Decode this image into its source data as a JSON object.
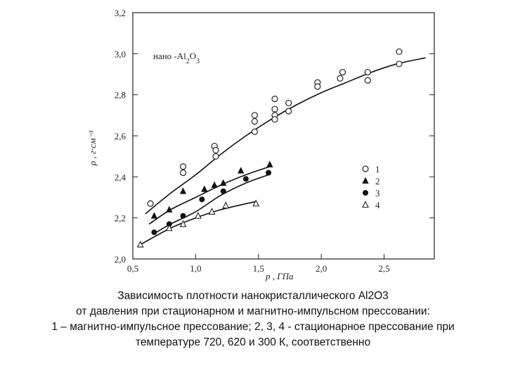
{
  "chart_data": {
    "type": "scatter",
    "annotation": "нано -Al2O3",
    "xlabel": "p , ГПа",
    "ylabel": "ρ , г·см⁻³",
    "xlim": [
      0.5,
      2.9
    ],
    "ylim": [
      2.0,
      3.2
    ],
    "x_ticks": [
      "0,5",
      "1,0",
      "1,5",
      "2,0",
      "2,5"
    ],
    "x_tick_values": [
      0.5,
      1.0,
      1.5,
      2.0,
      2.5
    ],
    "y_ticks": [
      "2,0",
      "2,2",
      "2,4",
      "2,6",
      "2,8",
      "3,0",
      "3,2"
    ],
    "y_tick_values": [
      2.0,
      2.2,
      2.4,
      2.6,
      2.8,
      3.0,
      3.2
    ],
    "legend_position": "right",
    "series": [
      {
        "name": "1",
        "marker": "open-circle",
        "points": [
          [
            0.64,
            2.27
          ],
          [
            0.9,
            2.45
          ],
          [
            0.9,
            2.42
          ],
          [
            1.15,
            2.55
          ],
          [
            1.16,
            2.53
          ],
          [
            1.16,
            2.5
          ],
          [
            1.47,
            2.7
          ],
          [
            1.47,
            2.67
          ],
          [
            1.47,
            2.62
          ],
          [
            1.63,
            2.78
          ],
          [
            1.63,
            2.73
          ],
          [
            1.63,
            2.7
          ],
          [
            1.63,
            2.68
          ],
          [
            1.74,
            2.76
          ],
          [
            1.74,
            2.72
          ],
          [
            1.97,
            2.86
          ],
          [
            1.97,
            2.84
          ],
          [
            2.15,
            2.88
          ],
          [
            2.17,
            2.91
          ],
          [
            2.37,
            2.91
          ],
          [
            2.37,
            2.87
          ],
          [
            2.62,
            3.01
          ],
          [
            2.62,
            2.95
          ]
        ],
        "fit": [
          [
            0.6,
            2.22
          ],
          [
            0.8,
            2.32
          ],
          [
            1.0,
            2.41
          ],
          [
            1.2,
            2.51
          ],
          [
            1.4,
            2.6
          ],
          [
            1.6,
            2.68
          ],
          [
            1.8,
            2.75
          ],
          [
            2.0,
            2.81
          ],
          [
            2.2,
            2.86
          ],
          [
            2.4,
            2.91
          ],
          [
            2.6,
            2.95
          ],
          [
            2.83,
            2.98
          ]
        ]
      },
      {
        "name": "2",
        "marker": "filled-triangle",
        "points": [
          [
            0.67,
            2.21
          ],
          [
            0.79,
            2.24
          ],
          [
            0.9,
            2.33
          ],
          [
            1.07,
            2.34
          ],
          [
            1.15,
            2.36
          ],
          [
            1.22,
            2.37
          ],
          [
            1.36,
            2.43
          ],
          [
            1.59,
            2.46
          ]
        ],
        "fit": [
          [
            0.63,
            2.17
          ],
          [
            0.8,
            2.24
          ],
          [
            1.0,
            2.3
          ],
          [
            1.2,
            2.36
          ],
          [
            1.4,
            2.41
          ],
          [
            1.59,
            2.45
          ]
        ]
      },
      {
        "name": "3",
        "marker": "filled-circle",
        "points": [
          [
            0.67,
            2.13
          ],
          [
            0.79,
            2.17
          ],
          [
            0.9,
            2.21
          ],
          [
            1.05,
            2.29
          ],
          [
            1.22,
            2.33
          ],
          [
            1.4,
            2.39
          ],
          [
            1.58,
            2.42
          ]
        ],
        "fit": [
          [
            0.66,
            2.12
          ],
          [
            0.8,
            2.17
          ],
          [
            1.0,
            2.23
          ],
          [
            1.2,
            2.31
          ],
          [
            1.4,
            2.37
          ],
          [
            1.58,
            2.41
          ]
        ]
      },
      {
        "name": "4",
        "marker": "open-triangle",
        "points": [
          [
            0.56,
            2.07
          ],
          [
            0.79,
            2.15
          ],
          [
            0.9,
            2.17
          ],
          [
            1.02,
            2.21
          ],
          [
            1.13,
            2.23
          ],
          [
            1.24,
            2.26
          ],
          [
            1.48,
            2.27
          ]
        ],
        "fit": [
          [
            0.56,
            2.07
          ],
          [
            0.8,
            2.15
          ],
          [
            1.0,
            2.2
          ],
          [
            1.2,
            2.24
          ],
          [
            1.48,
            2.28
          ]
        ]
      }
    ]
  },
  "caption": {
    "line1": "Зависимость плотности нанокристаллического Al2O3",
    "line2": "от давления при стационарном и магнитно-импульсном прессовании:",
    "line3": "1 – магнитно-импульсное прессование; 2, 3, 4 - стационарное прессование при",
    "line4": "температуре 720, 620 и 300 К, соответственно"
  }
}
